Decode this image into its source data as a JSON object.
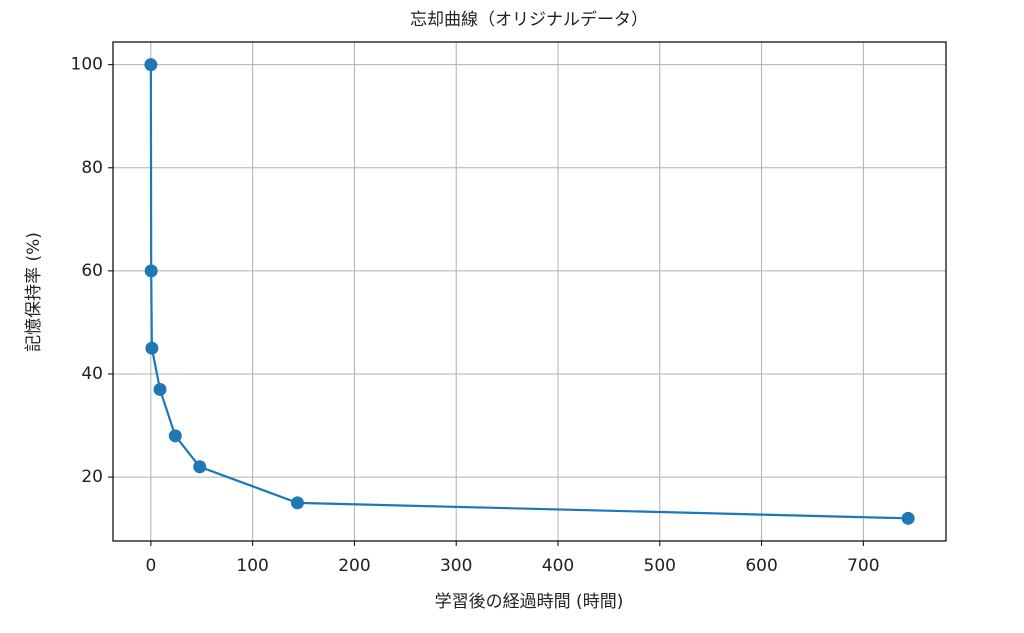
{
  "chart_data": {
    "type": "line",
    "title": "忘却曲線（オリジナルデータ）",
    "x_label": "学習後の経過時間 (時間)",
    "y_label": "記憶保持率 (%)",
    "x": [
      0,
      0.33,
      1,
      9,
      24,
      48,
      144,
      744
    ],
    "series": [
      {
        "color": "#1f77b4",
        "values": [
          100,
          60,
          45,
          37,
          28,
          22,
          15,
          12
        ]
      }
    ],
    "xlim": [
      -37.2,
      781.2
    ],
    "xticks": [
      0,
      100,
      200,
      300,
      400,
      500,
      600,
      700
    ],
    "ylim": [
      7.6,
      104.4
    ],
    "yticks": [
      20,
      40,
      60,
      80,
      100
    ],
    "grid": true,
    "markers": true
  }
}
